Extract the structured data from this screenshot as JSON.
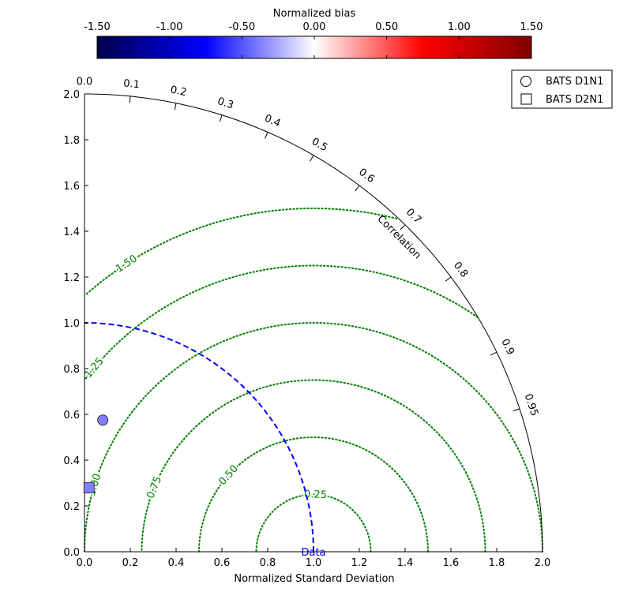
{
  "chart_data": {
    "type": "scatter",
    "subtype": "taylor-diagram",
    "xlabel": "Normalized Standard Deviation",
    "ylabel": "",
    "xlim": [
      0.0,
      2.0
    ],
    "ylim": [
      0.0,
      2.0
    ],
    "x_ticks": [
      "0.0",
      "0.2",
      "0.4",
      "0.6",
      "0.8",
      "1.0",
      "1.2",
      "1.4",
      "1.6",
      "1.8",
      "2.0"
    ],
    "y_ticks": [
      "0.0",
      "0.2",
      "0.4",
      "0.6",
      "0.8",
      "1.0",
      "1.2",
      "1.4",
      "1.6",
      "1.8",
      "2.0"
    ],
    "correlation_label": "Correlation",
    "correlation_ticks": [
      {
        "value": 0.0,
        "label": "0.0"
      },
      {
        "value": 0.1,
        "label": "0.1"
      },
      {
        "value": 0.2,
        "label": "0.2"
      },
      {
        "value": 0.3,
        "label": "0.3"
      },
      {
        "value": 0.4,
        "label": "0.4"
      },
      {
        "value": 0.5,
        "label": "0.5"
      },
      {
        "value": 0.6,
        "label": "0.6"
      },
      {
        "value": 0.7,
        "label": "0.7"
      },
      {
        "value": 0.8,
        "label": "0.8"
      },
      {
        "value": 0.9,
        "label": "0.9"
      },
      {
        "value": 0.95,
        "label": "0.95"
      }
    ],
    "rms_contours": [
      {
        "value": 0.25,
        "label": "0.25"
      },
      {
        "value": 0.5,
        "label": "0.50"
      },
      {
        "value": 0.75,
        "label": "0.75"
      },
      {
        "value": 1.0,
        "label": "1.00"
      },
      {
        "value": 1.25,
        "label": "1.25"
      },
      {
        "value": 1.5,
        "label": "1.50"
      }
    ],
    "reference": {
      "std": 1.0,
      "label": "Data"
    },
    "colorbar": {
      "title": "Normalized bias",
      "range": [
        -1.5,
        1.5
      ],
      "ticks": [
        "-1.50",
        "-1.00",
        "-0.50",
        "0.00",
        "0.50",
        "1.00",
        "1.50"
      ],
      "colormap": "seismic"
    },
    "legend_position": "top-right",
    "series": [
      {
        "name": "BATS D1N1",
        "marker": "circle",
        "x": 0.08,
        "y": 0.575,
        "bias": -0.7,
        "color": "#8080ff"
      },
      {
        "name": "BATS D2N1",
        "marker": "square",
        "x": 0.02,
        "y": 0.28,
        "bias": -0.7,
        "color": "#8080ff"
      }
    ],
    "colors": {
      "rms": "#008000",
      "reference": "#0000ff",
      "axis": "#000000"
    }
  }
}
